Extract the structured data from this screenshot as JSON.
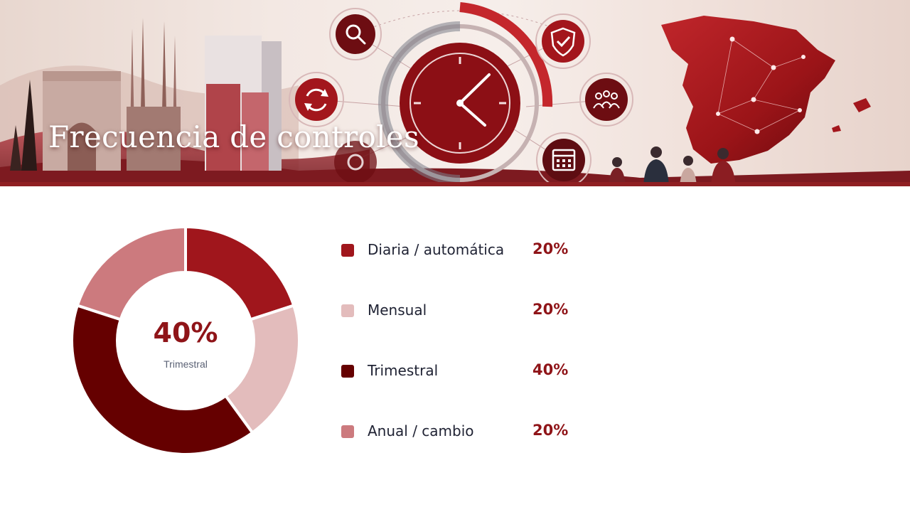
{
  "header": {
    "title": "Frecuencia de controles"
  },
  "colors": {
    "accent": "#8f1f22",
    "value_text": "#8f1418",
    "label_text": "#1f2233",
    "muted_text": "#5b6275"
  },
  "banner_icons": [
    "search-icon",
    "refresh-icon",
    "clock-icon",
    "shield-check-icon",
    "people-icon",
    "calendar-icon",
    "gear-icon",
    "spain-map-icon",
    "city-skyline-icon"
  ],
  "center": {
    "value": "40%",
    "label": "Trimestral"
  },
  "chart_data": {
    "type": "pie",
    "donut": true,
    "title": "",
    "legend_position": "right",
    "categories": [
      "Diaria / automática",
      "Mensual",
      "Trimestral",
      "Anual / cambio"
    ],
    "values": [
      20,
      20,
      40,
      20
    ],
    "value_labels": [
      "20%",
      "20%",
      "40%",
      "20%"
    ],
    "colors": [
      "#a0161c",
      "#e3bcbc",
      "#650000",
      "#cc7a7e"
    ]
  }
}
